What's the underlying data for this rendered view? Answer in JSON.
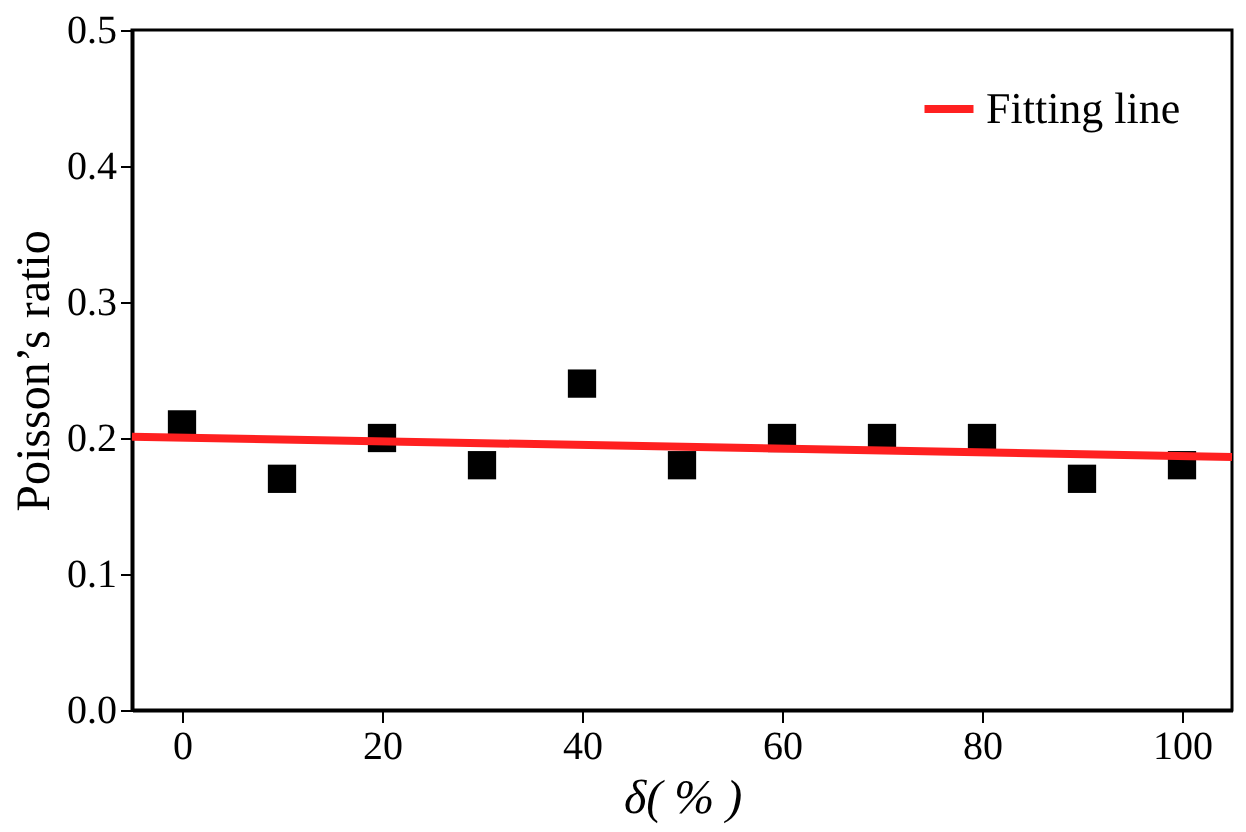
{
  "chart_data": {
    "type": "scatter",
    "xlabel": "δ( % )",
    "ylabel": "Poisson’s ratio",
    "xlim": [
      -5,
      105
    ],
    "ylim": [
      0,
      0.5
    ],
    "xticks": [
      0,
      20,
      40,
      60,
      80,
      100
    ],
    "yticks": [
      {
        "value": 0,
        "label": "0.0"
      },
      {
        "value": 0.1,
        "label": "0.1"
      },
      {
        "value": 0.2,
        "label": "0.2"
      },
      {
        "value": 0.3,
        "label": "0.3"
      },
      {
        "value": 0.4,
        "label": "0.4"
      },
      {
        "value": 0.5,
        "label": "0.5"
      }
    ],
    "x": [
      0,
      10,
      20,
      30,
      40,
      50,
      60,
      70,
      80,
      90,
      100
    ],
    "legend": "top right",
    "grid": false,
    "series": [
      {
        "color": "#000000",
        "marker": "square",
        "values": [
          0.21,
          0.17,
          0.2,
          0.18,
          0.24,
          0.18,
          0.2,
          0.2,
          0.2,
          0.17,
          0.18
        ]
      },
      {
        "type": "line",
        "name": "Fitting line",
        "color": "#ff2020",
        "line_style": "solid",
        "x": [
          -5,
          105
        ],
        "values": [
          0.201,
          0.186
        ]
      }
    ]
  }
}
